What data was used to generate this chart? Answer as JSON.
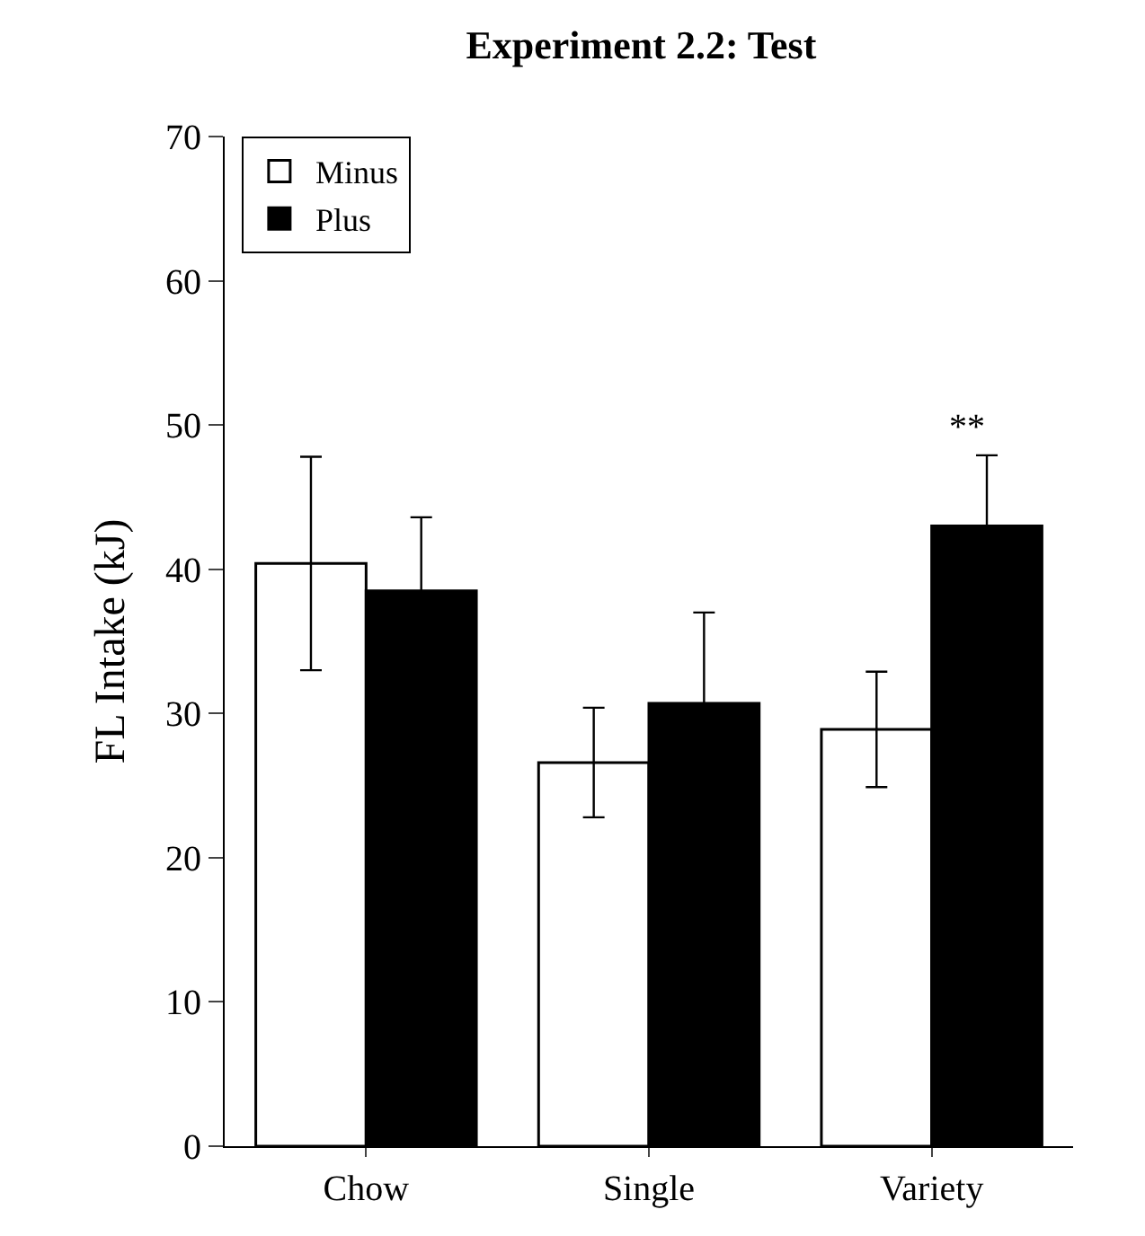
{
  "chart_data": {
    "type": "bar",
    "title": "Experiment 2.2: Test",
    "ylabel": "FL Intake (kJ)",
    "categories": [
      "Chow",
      "Single",
      "Variety"
    ],
    "series": [
      {
        "name": "Minus",
        "color": "#ffffff",
        "values": [
          40.4,
          26.6,
          28.9
        ],
        "errors": [
          7.4,
          3.8,
          4.0
        ]
      },
      {
        "name": "Plus",
        "color": "#000000",
        "values": [
          38.5,
          30.7,
          43.0
        ],
        "errors": [
          5.1,
          6.3,
          4.9
        ]
      }
    ],
    "ylim": [
      0,
      70
    ],
    "yticks": [
      0,
      10,
      20,
      30,
      40,
      50,
      60,
      70
    ],
    "legend": "top left",
    "annotations": [
      "**"
    ]
  }
}
